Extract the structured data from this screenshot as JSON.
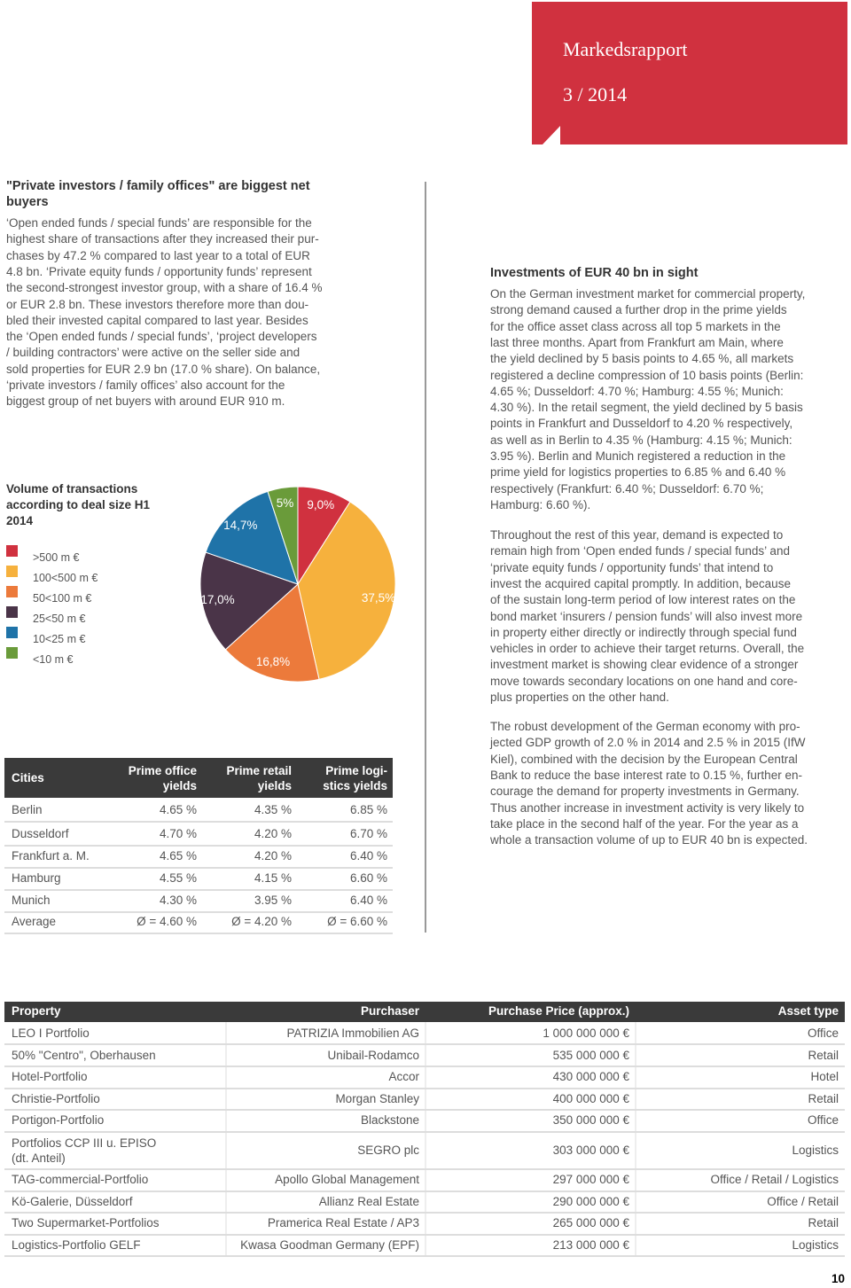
{
  "header": {
    "title": "Markedsrapport",
    "issue": "3 / 2014"
  },
  "left": {
    "heading": "\"Private investors / family offices\" are biggest net buyers",
    "lines": [
      "‘Open ended funds / special funds’ are responsible for the",
      "highest share of transactions after they increased their pur-",
      "chases by 47.2 % compared to last year to a total of EUR",
      "4.8 bn. ‘Private equity funds / opportunity funds’ represent",
      "the second-strongest investor group, with a share of 16.4 %",
      "or EUR 2.8 bn. These investors therefore more than dou-",
      "bled their invested capital compared to last year. Besides",
      "the ‘Open ended funds / special funds’, ‘project developers",
      "/ building contractors’ were active on the seller side and",
      "sold properties for EUR 2.9 bn (17.0 % share). On balance,",
      "‘private investors / family offices’ also account for the",
      "biggest group of net buyers with around EUR 910 m."
    ]
  },
  "chart_data": {
    "type": "pie",
    "title": "Volume of transactions according to deal size H1 2014",
    "categories": [
      ">500 m €",
      "100<500 m €",
      "50<100 m €",
      "25<50 m €",
      "10<25 m €",
      "<10 m €"
    ],
    "values": [
      9.0,
      37.5,
      16.8,
      17.0,
      14.7,
      5
    ],
    "value_labels": [
      "9,0%",
      "37,5%",
      "16,8%",
      "17,0%",
      "14,7%",
      "5%"
    ],
    "colors": [
      "#d0313f",
      "#f6b13d",
      "#ec7a3b",
      "#4a3448",
      "#1f73a8",
      "#6a9b3a"
    ]
  },
  "yields_table": {
    "header": [
      "Cities",
      [
        "Prime office",
        "yields"
      ],
      [
        "Prime retail",
        "yields"
      ],
      [
        "Prime logi-",
        "stics yields"
      ]
    ],
    "rows": [
      [
        "Berlin",
        "4.65 %",
        "4.35 %",
        "6.85 %"
      ],
      [
        "Dusseldorf",
        "4.70 %",
        "4.20 %",
        "6.70 %"
      ],
      [
        "Frankfurt a. M.",
        "4.65 %",
        "4.20 %",
        "6.40 %"
      ],
      [
        "Hamburg",
        "4.55 %",
        "4.15 %",
        "6.60 %"
      ],
      [
        "Munich",
        "4.30 %",
        "3.95 %",
        "6.40 %"
      ],
      [
        "Average",
        "Ø = 4.60 %",
        "Ø = 4.20 %",
        "Ø = 6.60 %"
      ]
    ]
  },
  "right": {
    "heading": "Investments of EUR 40 bn in sight",
    "paragraphs": [
      [
        "On the German investment market for commercial property,",
        "strong demand caused a further drop in the prime yields",
        "for the office asset class across all top 5 markets in the",
        "last three months. Apart from Frankfurt am Main, where",
        "the yield declined by 5 basis points to 4.65 %, all markets",
        "registered a decline compression of 10 basis points (Berlin:",
        "4.65 %; Dusseldorf: 4.70 %; Hamburg: 4.55 %; Munich:",
        "4.30 %). In the retail segment, the yield declined by 5 basis",
        "points in Frankfurt and Dusseldorf to 4.20 % respectively,",
        "as well as in Berlin to 4.35 % (Hamburg: 4.15 %; Munich:",
        "3.95 %). Berlin and Munich registered a reduction in the",
        "prime yield for logistics properties to 6.85 % and 6.40 %",
        "respectively (Frankfurt: 6.40 %; Dusseldorf: 6.70 %;",
        "Hamburg: 6.60 %)."
      ],
      [
        "Throughout the rest of this year, demand is expected to",
        "remain high from ‘Open ended funds / special funds’ and",
        "‘private equity funds / opportunity funds’ that intend to",
        "invest the acquired capital promptly. In addition, because",
        "of the sustain long-term period of low interest rates on the",
        "bond market ‘insurers / pension funds’ will also invest more",
        "in property either directly or indirectly through special fund",
        "vehicles in order to achieve their target returns. Overall, the",
        "investment market is showing clear evidence of a stronger",
        "move towards secondary locations on one hand and core-",
        "plus properties on the other hand."
      ],
      [
        "The robust development of the German economy with pro-",
        "jected GDP growth of 2.0 % in 2014 and 2.5 % in 2015 (IfW",
        "Kiel), combined with the decision by the European Central",
        "Bank to reduce the base interest rate to 0.15 %, further en-",
        "courage the demand for property investments in Germany.",
        "Thus another increase in investment activity is very likely to",
        "take place in the second half of the year. For the year as a",
        "whole a transaction volume of up to EUR 40 bn is expected."
      ]
    ]
  },
  "transactions": {
    "header": [
      "Property",
      "Purchaser",
      "Purchase Price (approx.)",
      "Asset type"
    ],
    "rows": [
      [
        "LEO I Portfolio",
        "PATRIZIA Immobilien AG",
        "1 000 000 000 €",
        "Office"
      ],
      [
        "50% \"Centro\", Oberhausen",
        "Unibail-Rodamco",
        "535 000 000 €",
        "Retail"
      ],
      [
        "Hotel-Portfolio",
        "Accor",
        "430 000 000 €",
        "Hotel"
      ],
      [
        "Christie-Portfolio",
        "Morgan Stanley",
        "400 000 000 €",
        "Retail"
      ],
      [
        "Portigon-Portfolio",
        "Blackstone",
        "350 000 000 €",
        "Office"
      ],
      [
        [
          "Portfolios CCP III u. EPISO",
          "(dt. Anteil)"
        ],
        "SEGRO plc",
        "303 000 000 €",
        "Logistics"
      ],
      [
        "TAG-commercial-Portfolio",
        "Apollo Global Management",
        "297 000 000 €",
        "Office / Retail / Logistics"
      ],
      [
        "Kö-Galerie, Düsseldorf",
        "Allianz Real Estate",
        "290 000 000 €",
        "Office / Retail"
      ],
      [
        "Two Supermarket-Portfolios",
        "Pramerica Real Estate / AP3",
        "265 000 000 €",
        "Retail"
      ],
      [
        "Logistics-Portfolio GELF",
        "Kwasa Goodman Germany (EPF)",
        "213 000 000 €",
        "Logistics"
      ]
    ]
  },
  "page_number": "10"
}
